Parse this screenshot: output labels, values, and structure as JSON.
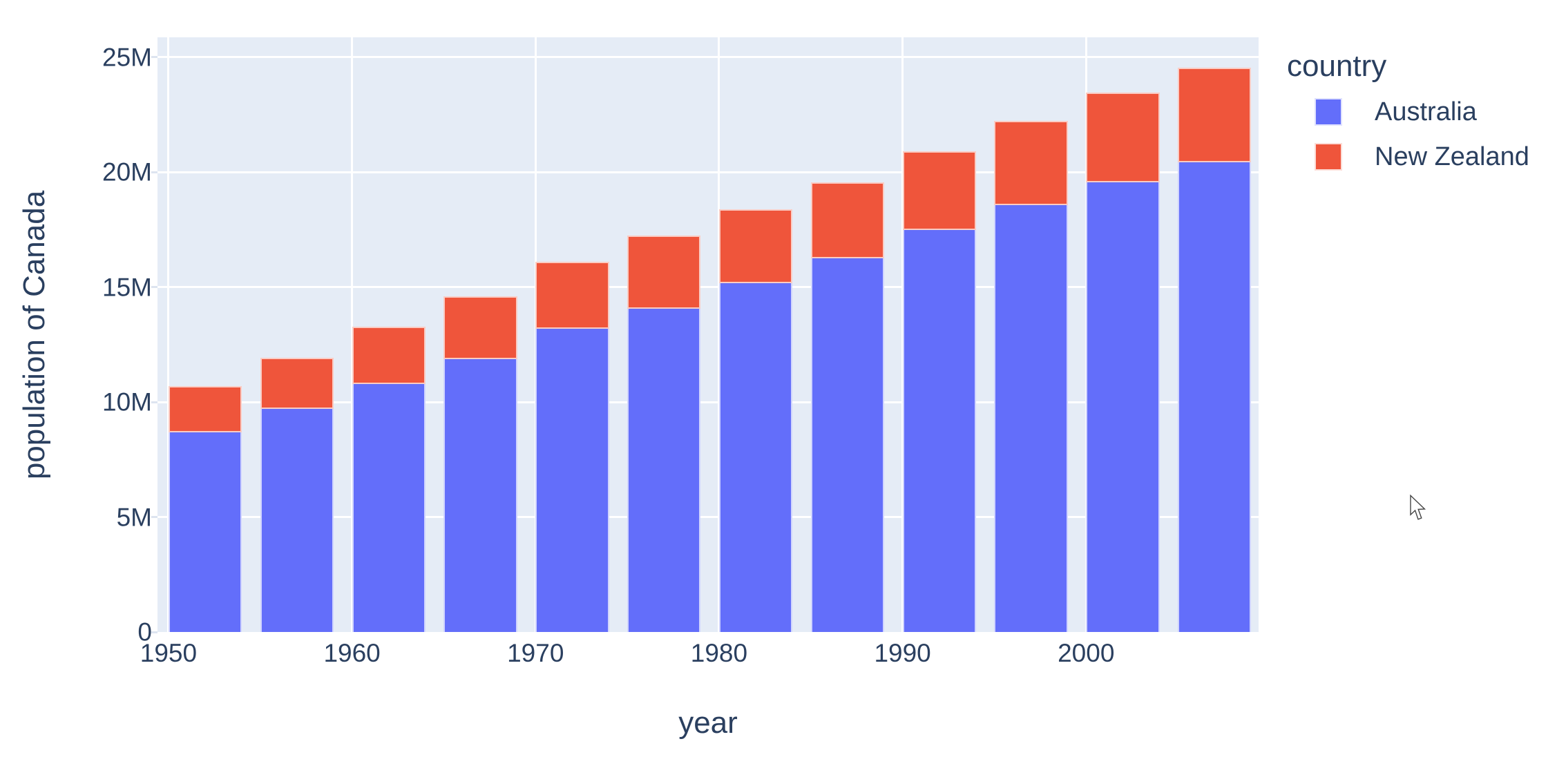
{
  "ui": {
    "cursor": "arrow-pointer",
    "background_color": "#FFFFFF"
  },
  "chart_data": {
    "type": "bar",
    "stacked": true,
    "orientation": "vertical",
    "title": "",
    "xlabel": "year",
    "ylabel": "population of Canada",
    "legend_title": "country",
    "legend_position": "right",
    "grid": true,
    "plot_bg_color": "#E5ECF6",
    "grid_color": "#FFFFFF",
    "text_color": "#2A3F5F",
    "categories": [
      1952,
      1957,
      1962,
      1967,
      1972,
      1977,
      1982,
      1987,
      1992,
      1997,
      2002,
      2007
    ],
    "series": [
      {
        "name": "Australia",
        "color": "#636EFA",
        "values": [
          8691212,
          9712569,
          10794968,
          11872264,
          13177000,
          14074100,
          15184200,
          16257249,
          17481977,
          18565243,
          19546792,
          20434176
        ]
      },
      {
        "name": "New Zealand",
        "color": "#EF553B",
        "values": [
          1994794,
          2229407,
          2488550,
          2728150,
          2929100,
          3164900,
          3210650,
          3317166,
          3437674,
          3676187,
          3908037,
          4115771
        ]
      }
    ],
    "x_ticks": [
      {
        "value": 1950,
        "label": "1950"
      },
      {
        "value": 1960,
        "label": "1960"
      },
      {
        "value": 1970,
        "label": "1970"
      },
      {
        "value": 1980,
        "label": "1980"
      },
      {
        "value": 1990,
        "label": "1990"
      },
      {
        "value": 2000,
        "label": "2000"
      }
    ],
    "y_ticks": [
      {
        "value": 0,
        "label": "0"
      },
      {
        "value": 5000000,
        "label": "5M"
      },
      {
        "value": 10000000,
        "label": "10M"
      },
      {
        "value": 15000000,
        "label": "15M"
      },
      {
        "value": 20000000,
        "label": "20M"
      },
      {
        "value": 25000000,
        "label": "25M"
      }
    ],
    "xlim": [
      1949.4,
      2009.4
    ],
    "ylim": [
      0,
      25870000
    ],
    "bar_width_years": 4
  }
}
